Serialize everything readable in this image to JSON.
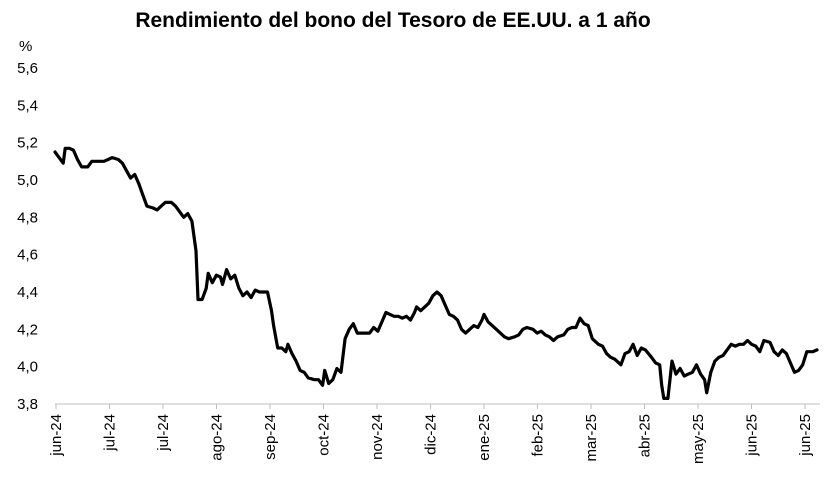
{
  "chart_data": {
    "type": "line",
    "title": "Rendimiento del bono del Tesoro de EE.UU. a 1 año",
    "ylabel": "%",
    "xlabel": "",
    "ylim": [
      3.8,
      5.6
    ],
    "yticks": [
      "3,8",
      "4,0",
      "4,2",
      "4,4",
      "4,6",
      "4,8",
      "5,0",
      "5,2",
      "5,4",
      "5,6"
    ],
    "xticks": [
      "jun-24",
      "jul-24",
      "jul-24",
      "ago-24",
      "sep-24",
      "oct-24",
      "nov-24",
      "dic-24",
      "ene-25",
      "feb-25",
      "mar-25",
      "abr-25",
      "may-25",
      "jun-25",
      "jun-25"
    ],
    "grid": false,
    "legend": "none",
    "line_color": "#000000",
    "series": [
      {
        "values": [
          [
            0,
            5.15
          ],
          [
            2,
            5.12
          ],
          [
            4,
            5.09
          ],
          [
            5,
            5.17
          ],
          [
            7,
            5.17
          ],
          [
            9,
            5.16
          ],
          [
            11,
            5.11
          ],
          [
            13,
            5.07
          ],
          [
            16,
            5.07
          ],
          [
            18,
            5.1
          ],
          [
            21,
            5.1
          ],
          [
            24,
            5.1
          ],
          [
            26,
            5.11
          ],
          [
            28,
            5.12
          ],
          [
            31,
            5.11
          ],
          [
            33,
            5.09
          ],
          [
            35,
            5.05
          ],
          [
            37,
            5.01
          ],
          [
            39,
            5.03
          ],
          [
            41,
            4.98
          ],
          [
            43,
            4.92
          ],
          [
            45,
            4.86
          ],
          [
            48,
            4.85
          ],
          [
            50,
            4.84
          ],
          [
            52,
            4.86
          ],
          [
            54,
            4.88
          ],
          [
            57,
            4.88
          ],
          [
            59,
            4.86
          ],
          [
            61,
            4.83
          ],
          [
            63,
            4.8
          ],
          [
            65,
            4.82
          ],
          [
            67,
            4.78
          ],
          [
            69,
            4.62
          ],
          [
            70,
            4.36
          ],
          [
            72,
            4.36
          ],
          [
            74,
            4.42
          ],
          [
            75,
            4.5
          ],
          [
            77,
            4.45
          ],
          [
            79,
            4.49
          ],
          [
            81,
            4.48
          ],
          [
            82,
            4.44
          ],
          [
            84,
            4.52
          ],
          [
            86,
            4.47
          ],
          [
            88,
            4.49
          ],
          [
            90,
            4.42
          ],
          [
            92,
            4.38
          ],
          [
            94,
            4.4
          ],
          [
            96,
            4.37
          ],
          [
            98,
            4.41
          ],
          [
            100,
            4.4
          ],
          [
            102,
            4.4
          ],
          [
            104,
            4.4
          ],
          [
            106,
            4.3
          ],
          [
            107,
            4.22
          ],
          [
            109,
            4.1
          ],
          [
            111,
            4.1
          ],
          [
            113,
            4.08
          ],
          [
            114,
            4.12
          ],
          [
            116,
            4.07
          ],
          [
            118,
            4.03
          ],
          [
            120,
            3.98
          ],
          [
            122,
            3.97
          ],
          [
            124,
            3.94
          ],
          [
            127,
            3.93
          ],
          [
            129,
            3.93
          ],
          [
            131,
            3.9
          ],
          [
            132,
            3.98
          ],
          [
            134,
            3.91
          ],
          [
            136,
            3.93
          ],
          [
            138,
            3.99
          ],
          [
            140,
            3.97
          ],
          [
            142,
            4.15
          ],
          [
            144,
            4.2
          ],
          [
            146,
            4.23
          ],
          [
            148,
            4.18
          ],
          [
            150,
            4.18
          ],
          [
            152,
            4.18
          ],
          [
            154,
            4.18
          ],
          [
            156,
            4.21
          ],
          [
            158,
            4.19
          ],
          [
            160,
            4.24
          ],
          [
            162,
            4.29
          ],
          [
            164,
            4.28
          ],
          [
            166,
            4.27
          ],
          [
            168,
            4.27
          ],
          [
            170,
            4.26
          ],
          [
            172,
            4.27
          ],
          [
            174,
            4.25
          ],
          [
            176,
            4.29
          ],
          [
            177,
            4.32
          ],
          [
            179,
            4.3
          ],
          [
            181,
            4.32
          ],
          [
            183,
            4.34
          ],
          [
            185,
            4.38
          ],
          [
            187,
            4.4
          ],
          [
            189,
            4.38
          ],
          [
            191,
            4.33
          ],
          [
            193,
            4.28
          ],
          [
            195,
            4.27
          ],
          [
            197,
            4.25
          ],
          [
            199,
            4.2
          ],
          [
            201,
            4.18
          ],
          [
            203,
            4.2
          ],
          [
            205,
            4.22
          ],
          [
            207,
            4.21
          ],
          [
            209,
            4.25
          ],
          [
            210,
            4.28
          ],
          [
            212,
            4.24
          ],
          [
            214,
            4.22
          ],
          [
            216,
            4.2
          ],
          [
            218,
            4.18
          ],
          [
            220,
            4.16
          ],
          [
            222,
            4.15
          ],
          [
            225,
            4.16
          ],
          [
            227,
            4.17
          ],
          [
            229,
            4.2
          ],
          [
            231,
            4.21
          ],
          [
            234,
            4.2
          ],
          [
            236,
            4.18
          ],
          [
            238,
            4.19
          ],
          [
            240,
            4.17
          ],
          [
            242,
            4.16
          ],
          [
            244,
            4.14
          ],
          [
            246,
            4.16
          ],
          [
            249,
            4.17
          ],
          [
            251,
            4.2
          ],
          [
            253,
            4.21
          ],
          [
            255,
            4.21
          ],
          [
            257,
            4.26
          ],
          [
            259,
            4.23
          ],
          [
            261,
            4.22
          ],
          [
            263,
            4.15
          ],
          [
            266,
            4.12
          ],
          [
            268,
            4.11
          ],
          [
            270,
            4.07
          ],
          [
            272,
            4.05
          ],
          [
            274,
            4.04
          ],
          [
            277,
            4.01
          ],
          [
            279,
            4.07
          ],
          [
            281,
            4.08
          ],
          [
            283,
            4.12
          ],
          [
            285,
            4.06
          ],
          [
            287,
            4.1
          ],
          [
            289,
            4.09
          ],
          [
            292,
            4.05
          ],
          [
            294,
            4.02
          ],
          [
            296,
            4.01
          ],
          [
            297,
            3.9
          ],
          [
            298,
            3.83
          ],
          [
            300,
            3.83
          ],
          [
            302,
            4.03
          ],
          [
            304,
            3.96
          ],
          [
            306,
            3.99
          ],
          [
            308,
            3.95
          ],
          [
            310,
            3.96
          ],
          [
            312,
            3.97
          ],
          [
            314,
            4.01
          ],
          [
            316,
            3.96
          ],
          [
            318,
            3.93
          ],
          [
            319,
            3.86
          ],
          [
            321,
            3.97
          ],
          [
            323,
            4.03
          ],
          [
            325,
            4.05
          ],
          [
            327,
            4.06
          ],
          [
            329,
            4.09
          ],
          [
            331,
            4.12
          ],
          [
            333,
            4.11
          ],
          [
            335,
            4.12
          ],
          [
            337,
            4.12
          ],
          [
            339,
            4.14
          ],
          [
            341,
            4.12
          ],
          [
            343,
            4.11
          ],
          [
            345,
            4.08
          ],
          [
            347,
            4.14
          ],
          [
            350,
            4.13
          ],
          [
            352,
            4.08
          ],
          [
            354,
            4.06
          ],
          [
            356,
            4.09
          ],
          [
            358,
            4.07
          ],
          [
            360,
            4.02
          ],
          [
            362,
            3.97
          ],
          [
            364,
            3.98
          ],
          [
            366,
            4.01
          ],
          [
            368,
            4.08
          ],
          [
            371,
            4.08
          ],
          [
            373,
            4.09
          ]
        ]
      }
    ]
  }
}
